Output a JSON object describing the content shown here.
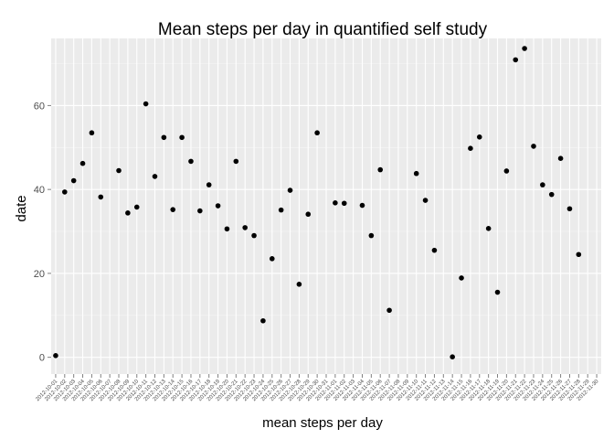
{
  "chart_data": {
    "type": "scatter",
    "title": "Mean steps per day in quantified self study",
    "xlabel": "mean steps per day",
    "ylabel": "date",
    "x": [
      "2012-10-01",
      "2012-10-02",
      "2012-10-03",
      "2012-10-04",
      "2012-10-05",
      "2012-10-06",
      "2012-10-07",
      "2012-10-08",
      "2012-10-09",
      "2012-10-10",
      "2012-10-11",
      "2012-10-12",
      "2012-10-13",
      "2012-10-14",
      "2012-10-15",
      "2012-10-16",
      "2012-10-17",
      "2012-10-18",
      "2012-10-19",
      "2012-10-20",
      "2012-10-21",
      "2012-10-22",
      "2012-10-23",
      "2012-10-24",
      "2012-10-25",
      "2012-10-26",
      "2012-10-27",
      "2012-10-28",
      "2012-10-29",
      "2012-10-30",
      "2012-10-31",
      "2012-11-01",
      "2012-11-02",
      "2012-11-03",
      "2012-11-04",
      "2012-11-05",
      "2012-11-06",
      "2012-11-07",
      "2012-11-08",
      "2012-11-09",
      "2012-11-10",
      "2012-11-11",
      "2012-11-12",
      "2012-11-13",
      "2012-11-14",
      "2012-11-15",
      "2012-11-16",
      "2012-11-17",
      "2012-11-18",
      "2012-11-19",
      "2012-11-20",
      "2012-11-21",
      "2012-11-22",
      "2012-11-23",
      "2012-11-24",
      "2012-11-25",
      "2012-11-26",
      "2012-11-27",
      "2012-11-28",
      "2012-11-29",
      "2012-11-30"
    ],
    "y": [
      0.4,
      39.4,
      42.1,
      46.2,
      53.5,
      38.2,
      null,
      44.5,
      34.4,
      35.8,
      60.4,
      43.1,
      52.4,
      35.2,
      52.4,
      46.7,
      34.9,
      41.1,
      36.1,
      30.6,
      46.7,
      30.9,
      29.0,
      8.7,
      23.5,
      35.1,
      39.8,
      17.4,
      34.1,
      53.5,
      null,
      36.8,
      36.7,
      null,
      36.2,
      29.0,
      44.7,
      11.2,
      null,
      null,
      43.8,
      37.4,
      25.5,
      null,
      0.1,
      18.9,
      49.8,
      52.5,
      30.7,
      15.5,
      44.4,
      70.9,
      73.6,
      50.3,
      41.1,
      38.8,
      47.4,
      35.4,
      24.5,
      null,
      null
    ],
    "ylim": [
      -4,
      76
    ],
    "yticks": [
      0,
      20,
      40,
      60
    ],
    "grid": true,
    "background": "#EBEBEB",
    "gridline_color": "#FFFFFF",
    "point_color": "#000000"
  }
}
